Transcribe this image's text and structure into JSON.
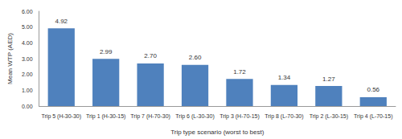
{
  "chart_data": {
    "type": "bar",
    "x_label": "Trip type scenario (worst to best)",
    "y_label": "Mean WTP (AED)",
    "categories": [
      "Trip 5 (H-30-30)",
      "Trip 1 (H-30-15)",
      "Trip 7 (H-70-30)",
      "Trip 6 (L-30-30)",
      "Trip 3 (H-70-15)",
      "Trip 8 (L-70-30)",
      "Trip 2 (L-30-15)",
      "Trip 4 (L-70-15)"
    ],
    "values": [
      4.92,
      2.99,
      2.7,
      2.6,
      1.72,
      1.34,
      1.27,
      0.56
    ],
    "value_labels": [
      "4.92",
      "2.99",
      "2.70",
      "2.60",
      "1.72",
      "1.34",
      "1.27",
      "0.56"
    ],
    "color": "#4f81bd",
    "ylim": [
      0,
      6
    ],
    "yticks": [
      {
        "value": 0,
        "label": "0.00"
      },
      {
        "value": 1,
        "label": "1.00"
      },
      {
        "value": 2,
        "label": "2.00"
      },
      {
        "value": 3,
        "label": "3.00"
      },
      {
        "value": 4,
        "label": "4.00"
      },
      {
        "value": 5,
        "label": "5.00"
      },
      {
        "value": 6,
        "label": "6.00"
      }
    ],
    "grid": false,
    "data_labels": true
  }
}
